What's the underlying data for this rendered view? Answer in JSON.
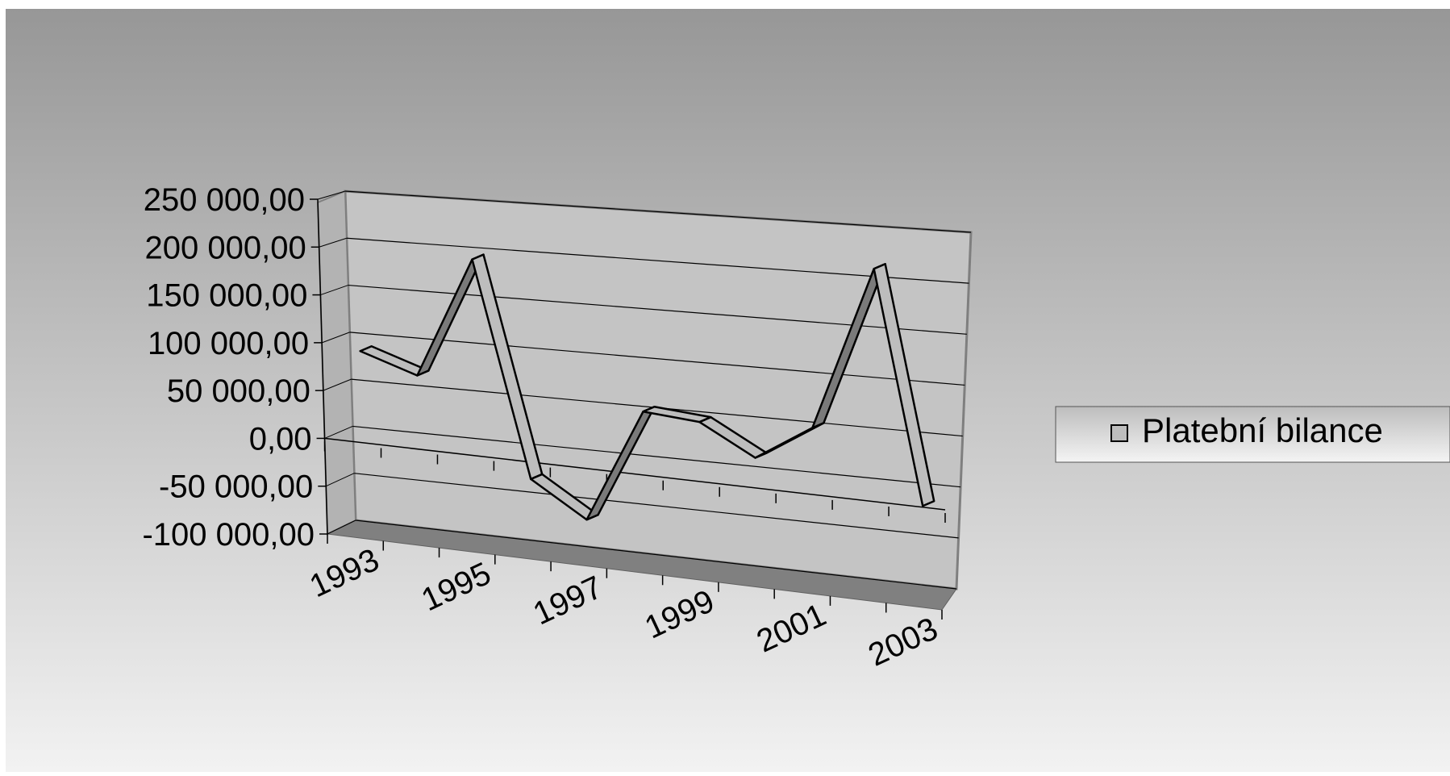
{
  "chart_data": {
    "type": "line",
    "style": "3d-ribbon",
    "categories": [
      "1993",
      "1994",
      "1995",
      "1996",
      "1997",
      "1998",
      "1999",
      "2000",
      "2001",
      "2002",
      "2003"
    ],
    "x_tick_labels": [
      "1993",
      "1995",
      "1997",
      "1999",
      "2001",
      "2003"
    ],
    "series": [
      {
        "name": "Platební bilance",
        "values": [
          90000,
          70000,
          195000,
          -25000,
          -60000,
          55000,
          50000,
          20000,
          55000,
          215000,
          -10000
        ]
      }
    ],
    "y_tick_labels": [
      "250 000,00",
      "200 000,00",
      "150 000,00",
      "100 000,00",
      "50 000,00",
      "0,00",
      "-50 000,00",
      "-100 000,00"
    ],
    "ylim": [
      -100000,
      250000
    ],
    "ytick_step": 50000,
    "grid": true,
    "legend_position": "right",
    "colors": {
      "background_top": "#979797",
      "background_bottom": "#f2f2f2",
      "ribbon_face": "#bdbdbd",
      "ribbon_side": "#7a7a7a",
      "floor": "#808080",
      "wall": "#c4c4c4",
      "line": "#000000"
    }
  }
}
